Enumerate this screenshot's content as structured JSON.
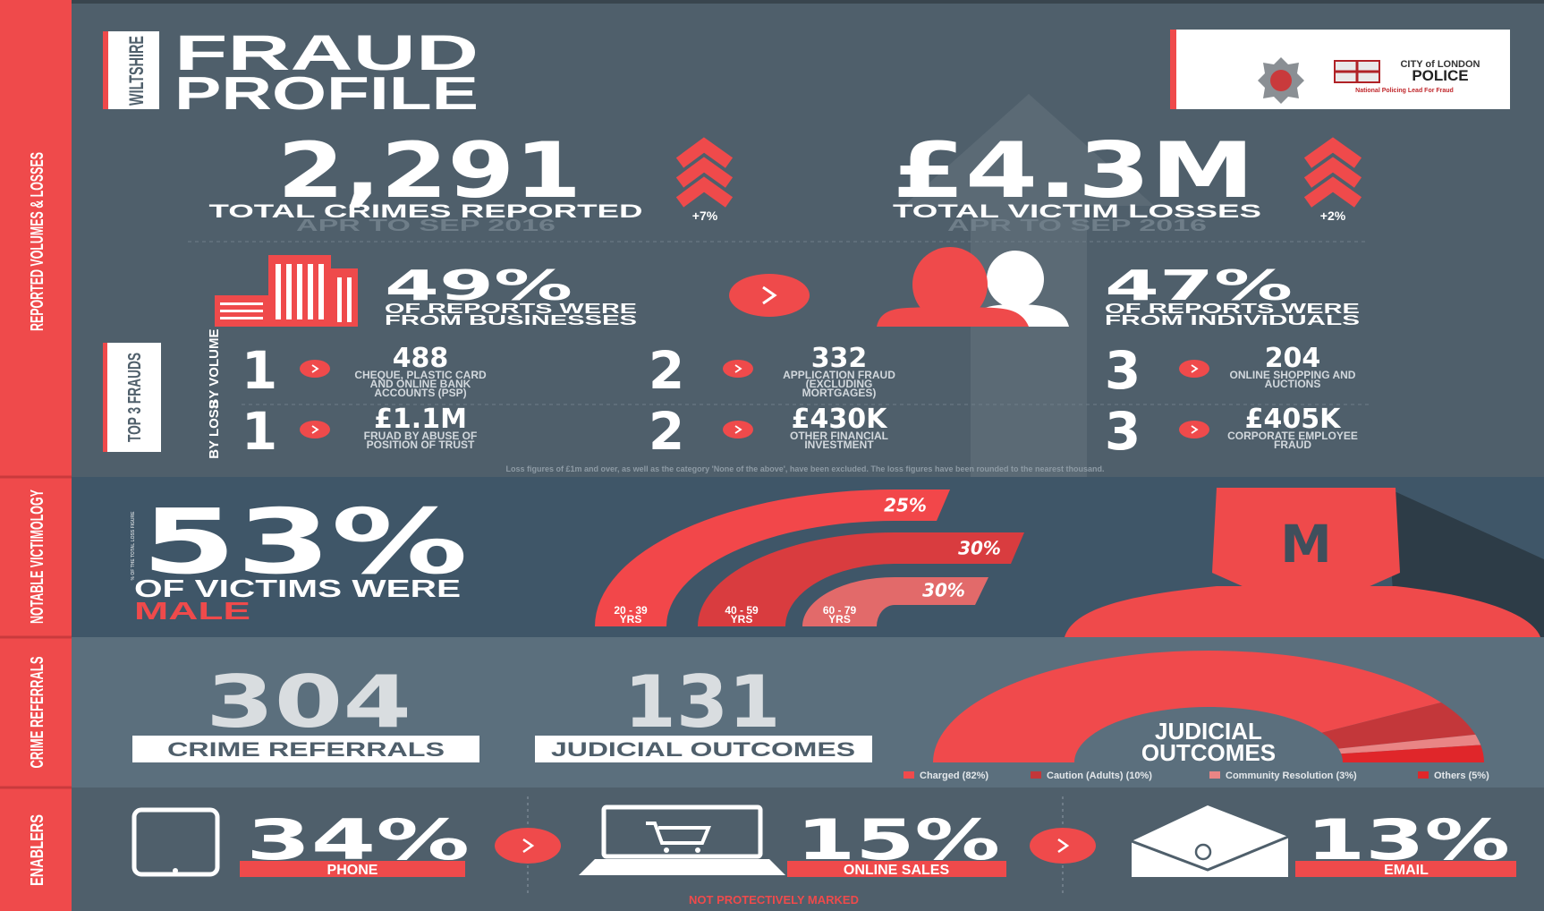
{
  "sidebar": [
    "REPORTED VOLUMES & LOSSES",
    "NOTABLE VICTIMOLOGY",
    "CRIME REFERRALS",
    "ENABLERS"
  ],
  "header": {
    "area": "WILTSHIRE",
    "title": [
      "FRAUD",
      "PROFILE"
    ],
    "logo": {
      "top": "CITY of LONDON",
      "name": "POLICE",
      "sub": "National Policing Lead For Fraud"
    }
  },
  "totals": [
    {
      "value": "2,291",
      "label": "TOTAL CRIMES REPORTED",
      "period": "APR TO SEP 2016",
      "change": "+7%"
    },
    {
      "value": "£4.3M",
      "label": "TOTAL VICTIM LOSSES",
      "period": "APR TO SEP 2016",
      "change": "+2%"
    }
  ],
  "reports": [
    {
      "value": "49%",
      "lines": [
        "OF REPORTS WERE",
        "FROM BUSINESSES"
      ]
    },
    {
      "value": "47%",
      "lines": [
        "OF REPORTS WERE",
        "FROM INDIVIDUALS"
      ]
    }
  ],
  "top_frauds": {
    "title": "TOP 3 FRAUDS",
    "rows": [
      {
        "label": "BY VOLUME",
        "items": [
          {
            "rank": "1",
            "value": "488",
            "lines": [
              "CHEQUE, PLASTIC CARD",
              "AND ONLINE BANK",
              "ACCOUNTS (PSP)"
            ]
          },
          {
            "rank": "2",
            "value": "332",
            "lines": [
              "APPLICATION FRAUD",
              "(EXCLUDING",
              "MORTGAGES)"
            ]
          },
          {
            "rank": "3",
            "value": "204",
            "lines": [
              "ONLINE SHOPPING AND",
              "AUCTIONS"
            ]
          }
        ]
      },
      {
        "label": "BY LOSS",
        "items": [
          {
            "rank": "1",
            "value": "£1.1M",
            "lines": [
              "FRUAD BY ABUSE OF",
              "POSITION OF TRUST"
            ]
          },
          {
            "rank": "2",
            "value": "£430K",
            "lines": [
              "OTHER FINANCIAL",
              "INVESTMENT"
            ]
          },
          {
            "rank": "3",
            "value": "£405K",
            "lines": [
              "CORPORATE EMPLOYEE",
              "FRAUD"
            ]
          }
        ]
      }
    ],
    "note": "Loss figures of £1m and over, as well as the category 'None of the above', have been excluded. The loss figures have been rounded to the nearest thousand."
  },
  "victimology": {
    "note": "% OF THE TOTAL LOSS FIGURE",
    "value": "53%",
    "line": "OF VICTIMS WERE",
    "highlight": "MALE",
    "badge": "M",
    "ages": [
      {
        "share": "25%",
        "lines": [
          "20 - 39",
          "YRS"
        ]
      },
      {
        "share": "30%",
        "lines": [
          "40 - 59",
          "YRS"
        ]
      },
      {
        "share": "30%",
        "lines": [
          "60 - 79",
          "YRS"
        ]
      }
    ]
  },
  "referrals": [
    {
      "value": "304",
      "label": "CRIME REFERRALS"
    },
    {
      "value": "131",
      "label": "JUDICIAL OUTCOMES"
    }
  ],
  "chart_data": {
    "type": "pie",
    "title": [
      "JUDICIAL",
      "OUTCOMES"
    ],
    "categories": [
      "Charged (82%)",
      "Caution (Adults) (10%)",
      "Community Resolution (3%)",
      "Others (5%)"
    ],
    "values": [
      82,
      10,
      3,
      5
    ],
    "colors": [
      "#f04a4c",
      "#c3373a",
      "#e98585",
      "#e0262a"
    ]
  },
  "enablers": [
    {
      "value": "34%",
      "label": "PHONE"
    },
    {
      "value": "15%",
      "label": "ONLINE SALES"
    },
    {
      "value": "13%",
      "label": "EMAIL"
    }
  ],
  "footer": "NOT PROTECTIVELY MARKED"
}
